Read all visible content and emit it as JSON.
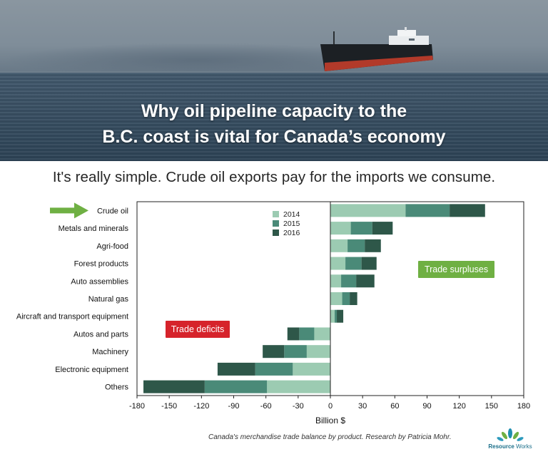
{
  "header": {
    "title_line1": "Why oil pipeline capacity to the",
    "title_line2": "B.C. coast is vital for Canada’s economy"
  },
  "subtitle": "It's really simple. Crude oil exports pay for the imports we consume.",
  "caption": "Canada's merchandise trade balance by product. Research by Patricia Mohr.",
  "logo": {
    "word1": "Resource",
    "word2": "Works"
  },
  "annotations": {
    "deficits": "Trade deficits",
    "surpluses": "Trade surpluses",
    "deficit_color": "#d6232b",
    "surplus_color": "#6fb043",
    "highlight": "Crude oil",
    "highlight_arrow_color": "#6fb043"
  },
  "chart_data": {
    "type": "bar",
    "orientation": "horizontal",
    "stacked": true,
    "categories": [
      "Crude oil",
      "Metals and minerals",
      "Agri-food",
      "Forest products",
      "Auto assemblies",
      "Natural gas",
      "Aircraft and transport equipment",
      "Autos and parts",
      "Machinery",
      "Electronic equipment",
      "Others"
    ],
    "series": [
      {
        "name": "2014",
        "color": "#9ccbb2",
        "values": [
          70,
          19,
          16,
          14,
          10,
          11,
          4,
          -15,
          -22,
          -35,
          -59
        ]
      },
      {
        "name": "2015",
        "color": "#4a8a78",
        "values": [
          41,
          20,
          16,
          15,
          14,
          7,
          2,
          -14,
          -21,
          -35,
          -58
        ]
      },
      {
        "name": "2016",
        "color": "#2e5749",
        "values": [
          33,
          19,
          15,
          14,
          17,
          7,
          6,
          -11,
          -20,
          -35,
          -57
        ]
      }
    ],
    "xlabel": "Billion $",
    "xlim": [
      -180,
      180
    ],
    "xticks": [
      -180,
      -150,
      -120,
      -90,
      -60,
      -30,
      0,
      30,
      60,
      90,
      120,
      150,
      180
    ],
    "grid": false,
    "legend": "top-left"
  }
}
